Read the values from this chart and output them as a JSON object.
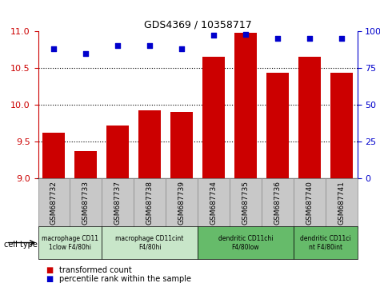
{
  "title": "GDS4369 / 10358717",
  "samples": [
    "GSM687732",
    "GSM687733",
    "GSM687737",
    "GSM687738",
    "GSM687739",
    "GSM687734",
    "GSM687735",
    "GSM687736",
    "GSM687740",
    "GSM687741"
  ],
  "transformed_counts": [
    9.62,
    9.37,
    9.72,
    9.92,
    9.9,
    10.65,
    10.98,
    10.43,
    10.65,
    10.43
  ],
  "percentile_ranks": [
    88,
    85,
    90,
    90,
    88,
    97,
    98,
    95,
    95,
    95
  ],
  "ylim_left": [
    9,
    11
  ],
  "ylim_right": [
    0,
    100
  ],
  "yticks_left": [
    9,
    9.5,
    10,
    10.5,
    11
  ],
  "yticks_right": [
    0,
    25,
    50,
    75,
    100
  ],
  "bar_color": "#cc0000",
  "dot_color": "#0000cc",
  "cell_type_groups": [
    {
      "label": "macrophage CD11\n1clow F4/80hi",
      "start": 0,
      "end": 2,
      "bg": "#c8e6c9"
    },
    {
      "label": "macrophage CD11cint\nF4/80hi",
      "start": 2,
      "end": 5,
      "bg": "#c8e6c9"
    },
    {
      "label": "dendritic CD11chi\nF4/80low",
      "start": 5,
      "end": 8,
      "bg": "#66bb6a"
    },
    {
      "label": "dendritic CD11ci\nnt F4/80int",
      "start": 8,
      "end": 10,
      "bg": "#66bb6a"
    }
  ],
  "cell_type_label": "cell type",
  "legend_bar_label": "transformed count",
  "legend_dot_label": "percentile rank within the sample",
  "sample_box_bg": "#c8c8c8",
  "right_axis_color": "#0000cc",
  "left_axis_color": "#cc0000",
  "grid_yticks": [
    9.5,
    10,
    10.5
  ]
}
